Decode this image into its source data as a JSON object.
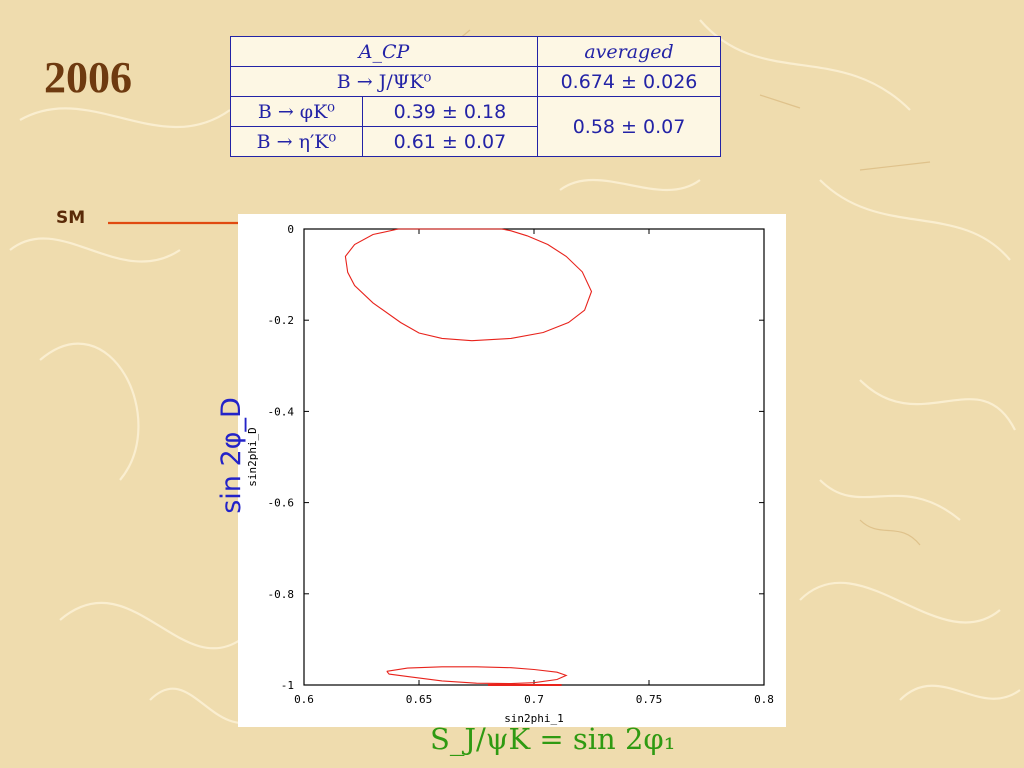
{
  "slide": {
    "year": "2006",
    "sm_label": "SM"
  },
  "table": {
    "header": {
      "acp": "A_CP",
      "averaged": "averaged"
    },
    "row_jpsi": {
      "process": "B → J/ΨK⁰",
      "averaged": "0.674 ± 0.026"
    },
    "row_phi": {
      "process": "B → φK⁰",
      "value": "0.39 ± 0.18"
    },
    "row_eta": {
      "process": "B → η′K⁰",
      "value": "0.61 ± 0.07"
    },
    "penguin_averaged": "0.58 ± 0.07"
  },
  "labels": {
    "y_big": "sin 2φ_D",
    "x_big": "S_J/ψK = sin 2φ₁"
  },
  "colors": {
    "contour": "#e8231c",
    "arrow": "#e04a10",
    "table_text": "#2323a6",
    "y_label": "#2323c8",
    "x_label": "#2f9a12",
    "year": "#6e3a10"
  },
  "chart_data": {
    "type": "scatter",
    "xlabel": "sin2phi_1",
    "ylabel": "sin2phi_D",
    "xlim": [
      0.6,
      0.8
    ],
    "ylim": [
      -1,
      0
    ],
    "x_ticks": [
      "0.6",
      "0.65",
      "0.7",
      "0.75",
      "0.8"
    ],
    "y_ticks": [
      "0",
      "-0.2",
      "-0.4",
      "-0.6",
      "-0.8",
      "-1"
    ],
    "x_tick_values": [
      0.6,
      0.65,
      0.7,
      0.75,
      0.8
    ],
    "y_tick_values": [
      0,
      -0.2,
      -0.4,
      -0.6,
      -0.8,
      -1
    ],
    "series": [
      {
        "points": [
          [
            0.641,
            0
          ],
          [
            0.656,
            0
          ],
          [
            0.671,
            0
          ],
          [
            0.686,
            0
          ],
          [
            0.69,
            -0.004
          ],
          [
            0.697,
            -0.015
          ],
          [
            0.706,
            -0.034
          ],
          [
            0.714,
            -0.06
          ],
          [
            0.721,
            -0.094
          ],
          [
            0.725,
            -0.137
          ],
          [
            0.722,
            -0.178
          ],
          [
            0.715,
            -0.205
          ],
          [
            0.704,
            -0.227
          ],
          [
            0.69,
            -0.24
          ],
          [
            0.673,
            -0.245
          ],
          [
            0.66,
            -0.24
          ],
          [
            0.65,
            -0.228
          ],
          [
            0.642,
            -0.205
          ],
          [
            0.63,
            -0.162
          ],
          [
            0.622,
            -0.124
          ],
          [
            0.619,
            -0.095
          ],
          [
            0.618,
            -0.06
          ],
          [
            0.622,
            -0.034
          ],
          [
            0.63,
            -0.012
          ],
          [
            0.641,
            0
          ]
        ]
      },
      {
        "points": [
          [
            0.636,
            -0.97
          ],
          [
            0.645,
            -0.963
          ],
          [
            0.66,
            -0.96
          ],
          [
            0.675,
            -0.96
          ],
          [
            0.69,
            -0.962
          ],
          [
            0.7,
            -0.966
          ],
          [
            0.71,
            -0.972
          ],
          [
            0.714,
            -0.979
          ],
          [
            0.71,
            -0.988
          ],
          [
            0.7,
            -0.995
          ],
          [
            0.69,
            -0.997
          ],
          [
            0.675,
            -0.996
          ],
          [
            0.66,
            -0.991
          ],
          [
            0.646,
            -0.982
          ],
          [
            0.637,
            -0.976
          ],
          [
            0.636,
            -0.97
          ]
        ]
      },
      {
        "points": [
          [
            0.68,
            -1.0
          ],
          [
            0.712,
            -1.0
          ]
        ]
      }
    ]
  }
}
